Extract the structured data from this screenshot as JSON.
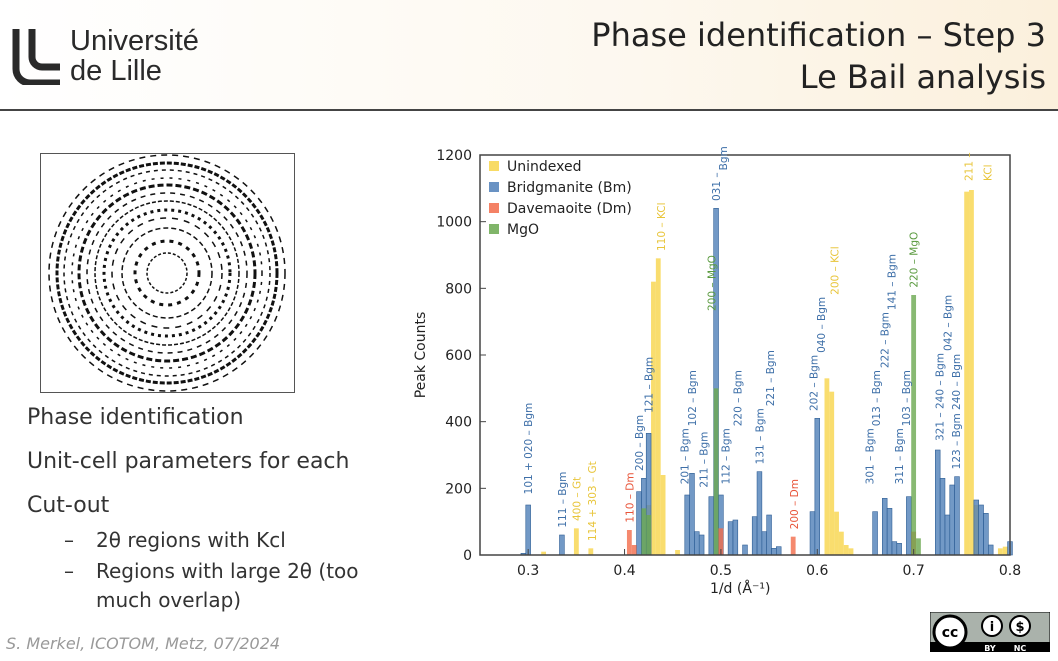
{
  "header": {
    "logo_line1": "Université",
    "logo_line2": "de Lille",
    "title_line1": "Phase identification – Step 3",
    "title_line2": "Le Bail analysis"
  },
  "bullets": [
    "Phase identification",
    "Unit-cell parameters for each",
    "Cut-out"
  ],
  "sub_bullets": [
    {
      "dash": "–",
      "text": "2θ regions with Kcl"
    },
    {
      "dash": "–",
      "text": "Regions with large 2θ (too much overlap)"
    }
  ],
  "footer": "S. Merkel, ICOTOM, Metz, 07/2024",
  "license": {
    "text": "BY NC",
    "icon": "creative-commons-by-nc-icon"
  },
  "image": {
    "icon": "diffraction-rings-image"
  },
  "chart_data": {
    "type": "bar",
    "xlabel": "1/d (Å⁻¹)",
    "ylabel": "Peak Counts",
    "xlim": [
      0.25,
      0.8
    ],
    "ylim": [
      0,
      1200
    ],
    "xticks": [
      0.3,
      0.4,
      0.5,
      0.6,
      0.7,
      0.8
    ],
    "yticks": [
      0,
      200,
      400,
      600,
      800,
      1000,
      1200
    ],
    "legend_position": "top-left",
    "series": [
      {
        "name": "Unindexed",
        "color": "#f7d54a",
        "x": [
          0.316,
          0.35,
          0.365,
          0.425,
          0.43,
          0.435,
          0.44,
          0.455,
          0.61,
          0.615,
          0.62,
          0.625,
          0.63,
          0.635,
          0.755,
          0.76,
          0.765,
          0.79,
          0.795
        ],
        "values": [
          10,
          80,
          20,
          150,
          820,
          890,
          240,
          15,
          530,
          490,
          130,
          70,
          30,
          20,
          1090,
          1095,
          150,
          20,
          25
        ]
      },
      {
        "name": "Bridgmanite (Bm)",
        "color": "#4f7fb8",
        "x": [
          0.295,
          0.3,
          0.335,
          0.415,
          0.42,
          0.425,
          0.465,
          0.47,
          0.475,
          0.48,
          0.49,
          0.495,
          0.5,
          0.51,
          0.515,
          0.525,
          0.535,
          0.54,
          0.545,
          0.55,
          0.555,
          0.56,
          0.595,
          0.6,
          0.66,
          0.67,
          0.675,
          0.68,
          0.685,
          0.695,
          0.725,
          0.73,
          0.735,
          0.74,
          0.745,
          0.765,
          0.77,
          0.775,
          0.78,
          0.8
        ],
        "values": [
          5,
          150,
          60,
          190,
          230,
          365,
          180,
          245,
          70,
          60,
          175,
          1040,
          180,
          100,
          105,
          30,
          115,
          250,
          70,
          120,
          20,
          25,
          130,
          410,
          130,
          170,
          140,
          40,
          35,
          175,
          315,
          230,
          120,
          210,
          235,
          165,
          150,
          125,
          30,
          40
        ]
      },
      {
        "name": "Davemaoite (Dm)",
        "color": "#f26b4a",
        "x": [
          0.405,
          0.41,
          0.5,
          0.575,
          0.7
        ],
        "values": [
          75,
          30,
          80,
          55,
          70
        ]
      },
      {
        "name": "MgO",
        "color": "#6aa84f",
        "x": [
          0.42,
          0.425,
          0.495,
          0.7,
          0.705
        ],
        "values": [
          140,
          120,
          500,
          780,
          50
        ]
      }
    ],
    "annotations": [
      {
        "x": 0.3,
        "y": 170,
        "text": "101 + 020 – Bgm",
        "series": 1
      },
      {
        "x": 0.335,
        "y": 70,
        "text": "111 – Bgm",
        "series": 1
      },
      {
        "x": 0.35,
        "y": 90,
        "text": "400 – Gt",
        "series": 0
      },
      {
        "x": 0.366,
        "y": 30,
        "text": "114 + 303 – Gt",
        "series": 0
      },
      {
        "x": 0.405,
        "y": 85,
        "text": "110 – Dm",
        "series": 2
      },
      {
        "x": 0.415,
        "y": 240,
        "text": "200 – Bgm",
        "series": 1
      },
      {
        "x": 0.425,
        "y": 380,
        "text": "121 – Bgm",
        "series": 1
      },
      {
        "x": 0.438,
        "y": 900,
        "text": "110 – KCl",
        "series": 0
      },
      {
        "x": 0.462,
        "y": 200,
        "text": "201 – Bgm",
        "series": 1
      },
      {
        "x": 0.47,
        "y": 255,
        "text": "102 – Bgm",
        "series": 1
      },
      {
        "x": 0.482,
        "y": 190,
        "text": "211 – Bgm",
        "series": 1
      },
      {
        "x": 0.49,
        "y": 720,
        "text": "200 – MgO",
        "series": 3
      },
      {
        "x": 0.495,
        "y": 1050,
        "text": "031 –",
        "series": 1
      },
      {
        "x": 0.502,
        "y": 1050,
        "text": "Bgm",
        "series": 1
      },
      {
        "x": 0.505,
        "y": 200,
        "text": "112 – Bgm",
        "series": 1
      },
      {
        "x": 0.517,
        "y": 115,
        "text": "220 – Bgm",
        "series": 1
      },
      {
        "x": 0.54,
        "y": 260,
        "text": "131 – Bgm",
        "series": 1
      },
      {
        "x": 0.551,
        "y": 130,
        "text": "221 – Bgm",
        "series": 1
      },
      {
        "x": 0.576,
        "y": 65,
        "text": "200 – Dm",
        "series": 2
      },
      {
        "x": 0.596,
        "y": 420,
        "text": "202 – Bgm",
        "series": 1
      },
      {
        "x": 0.604,
        "y": 420,
        "text": "040 – Bgm",
        "series": 1
      },
      {
        "x": 0.618,
        "y": 540,
        "text": "200 – KCl",
        "series": 0
      },
      {
        "x": 0.654,
        "y": 200,
        "text": "301 – Bgm",
        "series": 1
      },
      {
        "x": 0.661,
        "y": 200,
        "text": "013 – Bgm",
        "series": 1
      },
      {
        "x": 0.67,
        "y": 400,
        "text": "222 – Bgm",
        "series": 1
      },
      {
        "x": 0.677,
        "y": 400,
        "text": "141 – Bgm",
        "series": 1
      },
      {
        "x": 0.685,
        "y": 200,
        "text": "311 – Bgm",
        "series": 1
      },
      {
        "x": 0.692,
        "y": 200,
        "text": "103 – Bgm",
        "series": 1
      },
      {
        "x": 0.7,
        "y": 790,
        "text": "220 – MgO",
        "series": 3
      },
      {
        "x": 0.727,
        "y": 330,
        "text": "321 – 240 – Bgm",
        "series": 1
      },
      {
        "x": 0.735,
        "y": 260,
        "text": "042 – Bgm",
        "series": 1
      },
      {
        "x": 0.744,
        "y": 245,
        "text": "123 – Bgm  240 – Bgm",
        "series": 1
      },
      {
        "x": 0.757,
        "y": 1110,
        "text": "211 –",
        "series": 0
      },
      {
        "x": 0.764,
        "y": 1110,
        "text": "KCl",
        "series": 0
      }
    ]
  }
}
